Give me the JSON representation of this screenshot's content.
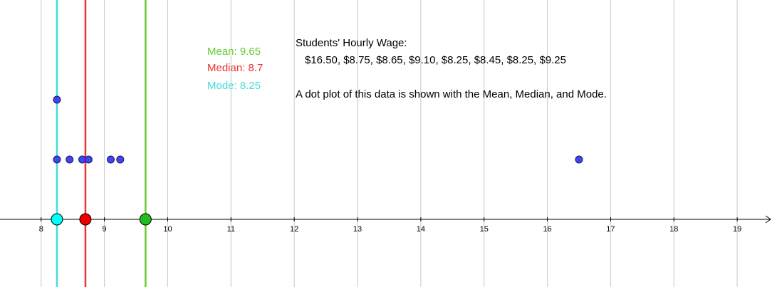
{
  "chart_data": {
    "type": "scatter",
    "title": "",
    "xlabel": "",
    "ylabel": "",
    "xlim": [
      7.35,
      19.55
    ],
    "ylim": [
      -1,
      3.6
    ],
    "x_ticks": [
      "8",
      "9",
      "10",
      "11",
      "12",
      "13",
      "14",
      "15",
      "16",
      "17",
      "18",
      "19"
    ],
    "grid": true,
    "dots": [
      {
        "x": 8.25,
        "y": 2
      },
      {
        "x": 8.25,
        "y": 1
      },
      {
        "x": 8.45,
        "y": 1
      },
      {
        "x": 8.65,
        "y": 1
      },
      {
        "x": 8.75,
        "y": 1
      },
      {
        "x": 9.1,
        "y": 1
      },
      {
        "x": 9.25,
        "y": 1
      },
      {
        "x": 16.5,
        "y": 1
      }
    ],
    "stat_lines": [
      {
        "key": "mean",
        "text": "Mean: 9.65",
        "value": 9.65,
        "color": "#66cc33",
        "marker_fill": "#22bb22"
      },
      {
        "key": "median",
        "text": "Median: 8.7",
        "value": 8.7,
        "color": "#ee3333",
        "marker_fill": "#ee0000"
      },
      {
        "key": "mode",
        "text": "Mode: 8.25",
        "value": 8.25,
        "color": "#44dddd",
        "marker_fill": "#00ffff"
      }
    ],
    "dot_color": "#4444ee"
  },
  "text": {
    "heading": "Students' Hourly Wage:",
    "data_list": "$16.50, $8.75, $8.65, $9.10, $8.25, $8.45, $8.25, $9.25",
    "description": "A dot plot of this data is shown with the Mean, Median, and Mode."
  }
}
